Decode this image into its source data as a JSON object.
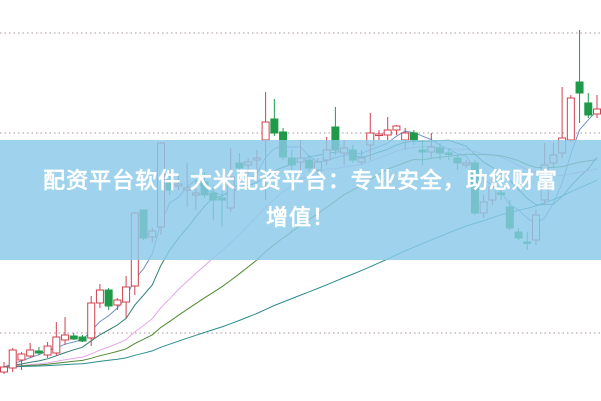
{
  "banner": {
    "line1": "配资平台软件 大米配资平台：专业安全，助您财富",
    "line2": "增值！"
  },
  "colors": {
    "up": "#d0404e",
    "down": "#1f9a48",
    "grid": "#b9a9b3",
    "banner": "#8ac9e9"
  },
  "chart_data": {
    "type": "candlestick",
    "title": "",
    "xlabel": "",
    "ylabel": "",
    "ylim": [
      0,
      400
    ],
    "grid": true,
    "grid_levels": [
      367,
      267,
      67
    ],
    "ohlc_order": [
      "open",
      "high",
      "low",
      "close"
    ],
    "candles": [
      [
        28,
        38,
        26,
        33
      ],
      [
        32,
        52,
        28,
        50
      ],
      [
        40,
        48,
        30,
        46
      ],
      [
        44,
        57,
        42,
        50
      ],
      [
        49,
        53,
        45,
        47
      ],
      [
        45,
        58,
        42,
        54
      ],
      [
        47,
        78,
        44,
        63
      ],
      [
        60,
        83,
        55,
        65
      ],
      [
        64,
        67,
        60,
        61
      ],
      [
        63,
        65,
        58,
        59
      ],
      [
        62,
        104,
        54,
        97
      ],
      [
        97,
        116,
        92,
        110
      ],
      [
        110,
        112,
        90,
        94
      ],
      [
        95,
        102,
        90,
        100
      ],
      [
        98,
        124,
        82,
        113
      ],
      [
        114,
        188,
        105,
        187
      ],
      [
        190,
        190,
        160,
        162
      ],
      [
        163,
        172,
        157,
        169
      ],
      [
        173,
        258,
        165,
        257
      ],
      [
        220,
        230,
        205,
        210
      ],
      [
        214,
        225,
        210,
        216
      ],
      [
        210,
        237,
        193,
        212
      ],
      [
        205,
        220,
        190,
        207
      ],
      [
        218,
        228,
        202,
        205
      ],
      [
        207,
        215,
        180,
        200
      ],
      [
        202,
        210,
        173,
        200
      ],
      [
        192,
        252,
        188,
        223
      ],
      [
        237,
        247,
        228,
        232
      ],
      [
        235,
        242,
        225,
        238
      ],
      [
        240,
        250,
        220,
        242
      ],
      [
        260,
        308,
        200,
        278
      ],
      [
        281,
        301,
        264,
        267
      ],
      [
        268,
        272,
        240,
        243
      ],
      [
        242,
        250,
        230,
        235
      ],
      [
        238,
        260,
        228,
        242
      ],
      [
        240,
        245,
        228,
        232
      ],
      [
        230,
        242,
        225,
        238
      ],
      [
        240,
        263,
        235,
        250
      ],
      [
        273,
        293,
        245,
        250
      ],
      [
        247,
        260,
        235,
        252
      ],
      [
        250,
        255,
        237,
        240
      ],
      [
        238,
        250,
        235,
        242
      ],
      [
        255,
        287,
        240,
        267
      ],
      [
        265,
        270,
        260,
        266
      ],
      [
        265,
        283,
        260,
        270
      ],
      [
        270,
        275,
        265,
        274
      ],
      [
        260,
        272,
        250,
        267
      ],
      [
        267,
        270,
        255,
        260
      ],
      [
        250,
        260,
        235,
        248
      ],
      [
        248,
        267,
        242,
        253
      ],
      [
        252,
        257,
        240,
        247
      ],
      [
        247,
        252,
        240,
        246
      ],
      [
        242,
        245,
        230,
        237
      ],
      [
        235,
        240,
        232,
        237
      ],
      [
        237,
        240,
        185,
        187
      ],
      [
        187,
        205,
        182,
        198
      ],
      [
        200,
        222,
        195,
        213
      ],
      [
        207,
        215,
        200,
        206
      ],
      [
        193,
        200,
        170,
        172
      ],
      [
        168,
        172,
        160,
        162
      ],
      [
        158,
        168,
        150,
        157
      ],
      [
        160,
        190,
        155,
        185
      ],
      [
        200,
        257,
        195,
        235
      ],
      [
        237,
        257,
        232,
        245
      ],
      [
        247,
        313,
        242,
        262
      ],
      [
        260,
        305,
        258,
        302
      ],
      [
        318,
        370,
        277,
        307
      ],
      [
        297,
        307,
        282,
        285
      ],
      [
        286,
        305,
        282,
        291
      ]
    ],
    "moving_averages": [
      {
        "period": 5,
        "color": "#6f93c4"
      },
      {
        "period": 10,
        "color": "#2f7f72"
      },
      {
        "period": 20,
        "color": "#e3a6e6"
      },
      {
        "period": 30,
        "color": "#4f8a33"
      },
      {
        "period": 60,
        "color": "#2a8c8c"
      }
    ]
  }
}
